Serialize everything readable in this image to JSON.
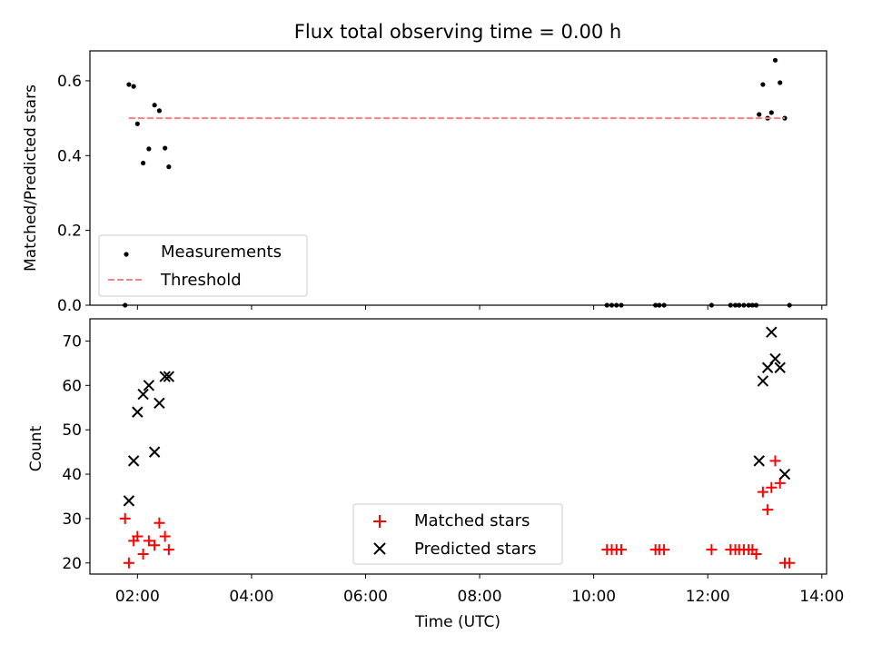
{
  "chart_data": {
    "title": "Flux total observing time = 0.00 h",
    "xlabel": "Time (UTC)",
    "xlim": [
      "01:10",
      "14:05"
    ],
    "xticks": [
      "02:00",
      "04:00",
      "06:00",
      "08:00",
      "10:00",
      "12:00",
      "14:00"
    ],
    "grid": false,
    "panels": [
      {
        "type": "scatter",
        "ylabel": "Matched/Predicted stars",
        "ylim": [
          0,
          0.68
        ],
        "yticks": [
          "0.0",
          "0.2",
          "0.4",
          "0.6"
        ],
        "legend_position": "lower-left",
        "series": [
          {
            "name": "Measurements",
            "marker": "dot",
            "color": "#000000",
            "points": [
              [
                "01:47",
                0.0
              ],
              [
                "01:51",
                0.59
              ],
              [
                "01:56",
                0.585
              ],
              [
                "02:00",
                0.485
              ],
              [
                "02:06",
                0.38
              ],
              [
                "02:12",
                0.418
              ],
              [
                "02:18",
                0.535
              ],
              [
                "02:23",
                0.52
              ],
              [
                "02:29",
                0.42
              ],
              [
                "02:33",
                0.37
              ],
              [
                "10:14",
                0.0
              ],
              [
                "10:19",
                0.0
              ],
              [
                "10:24",
                0.0
              ],
              [
                "10:29",
                0.0
              ],
              [
                "11:05",
                0.0
              ],
              [
                "11:09",
                0.0
              ],
              [
                "11:14",
                0.0
              ],
              [
                "12:04",
                0.0
              ],
              [
                "12:24",
                0.0
              ],
              [
                "12:29",
                0.0
              ],
              [
                "12:33",
                0.0
              ],
              [
                "12:38",
                0.0
              ],
              [
                "12:43",
                0.0
              ],
              [
                "12:47",
                0.0
              ],
              [
                "12:51",
                0.0
              ],
              [
                "12:54",
                0.51
              ],
              [
                "12:58",
                0.59
              ],
              [
                "13:03",
                0.5
              ],
              [
                "13:07",
                0.515
              ],
              [
                "13:11",
                0.655
              ],
              [
                "13:16",
                0.595
              ],
              [
                "13:21",
                0.5
              ],
              [
                "13:26",
                0.0
              ]
            ]
          },
          {
            "name": "Threshold",
            "type": "line",
            "style": "dashed",
            "color": "#ff7f7f",
            "points": [
              [
                "01:51",
                0.5
              ],
              [
                "13:21",
                0.5
              ]
            ]
          }
        ]
      },
      {
        "type": "scatter",
        "ylabel": "Count",
        "ylim": [
          17.5,
          75
        ],
        "yticks": [
          "20",
          "30",
          "40",
          "50",
          "60",
          "70"
        ],
        "legend_position": "lower-center",
        "series": [
          {
            "name": "Matched stars",
            "marker": "plus",
            "color": "#ff0000",
            "points": [
              [
                "01:47",
                30
              ],
              [
                "01:51",
                20
              ],
              [
                "01:56",
                25
              ],
              [
                "02:00",
                26
              ],
              [
                "02:06",
                22
              ],
              [
                "02:12",
                25
              ],
              [
                "02:18",
                24
              ],
              [
                "02:23",
                29
              ],
              [
                "02:29",
                26
              ],
              [
                "02:33",
                23
              ],
              [
                "10:14",
                23
              ],
              [
                "10:19",
                23
              ],
              [
                "10:24",
                23
              ],
              [
                "10:29",
                23
              ],
              [
                "11:05",
                23
              ],
              [
                "11:09",
                23
              ],
              [
                "11:14",
                23
              ],
              [
                "12:04",
                23
              ],
              [
                "12:24",
                23
              ],
              [
                "12:29",
                23
              ],
              [
                "12:33",
                23
              ],
              [
                "12:38",
                23
              ],
              [
                "12:43",
                23
              ],
              [
                "12:47",
                23
              ],
              [
                "12:51",
                22
              ],
              [
                "12:58",
                36
              ],
              [
                "13:03",
                32
              ],
              [
                "13:07",
                37
              ],
              [
                "13:11",
                43
              ],
              [
                "13:16",
                38
              ],
              [
                "13:21",
                20
              ],
              [
                "13:26",
                20
              ]
            ]
          },
          {
            "name": "Predicted stars",
            "marker": "x",
            "color": "#000000",
            "points": [
              [
                "01:51",
                34
              ],
              [
                "01:56",
                43
              ],
              [
                "02:00",
                54
              ],
              [
                "02:06",
                58
              ],
              [
                "02:12",
                60
              ],
              [
                "02:18",
                45
              ],
              [
                "02:23",
                56
              ],
              [
                "02:29",
                62
              ],
              [
                "02:33",
                62
              ],
              [
                "12:54",
                43
              ],
              [
                "12:58",
                61
              ],
              [
                "13:03",
                64
              ],
              [
                "13:07",
                72
              ],
              [
                "13:11",
                66
              ],
              [
                "13:16",
                64
              ],
              [
                "13:21",
                40
              ]
            ]
          }
        ]
      }
    ]
  }
}
